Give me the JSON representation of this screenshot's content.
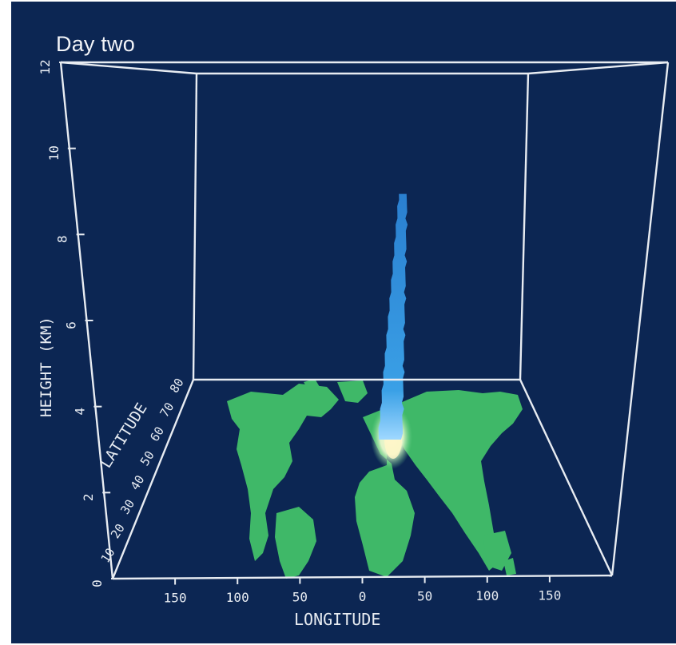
{
  "chart_data": {
    "type": "3d-dispersion-plot",
    "title": "Day two",
    "zlabel": "HEIGHT (KM)",
    "ylabel": "LATITUDE",
    "xlabel": "LONGITUDE",
    "z_ticks": [
      "0",
      "2",
      "4",
      "6",
      "8",
      "10",
      "12"
    ],
    "lat_ticks": [
      "10",
      "20",
      "30",
      "40",
      "50",
      "60",
      "70",
      "80"
    ],
    "lon_ticks": [
      "150",
      "100",
      "50",
      "0",
      "50",
      "100",
      "150"
    ],
    "zlim": [
      0,
      12
    ],
    "plume": {
      "base_height_km": 3.3,
      "top_height_km": 9.5
    },
    "colors": {
      "background": "#0c2653",
      "land": "#3fb868",
      "land_light": "#6cd48e",
      "plume": "#2f93dc",
      "plume_light": "#7cc6f2",
      "axes": "#e8ecf2"
    }
  }
}
